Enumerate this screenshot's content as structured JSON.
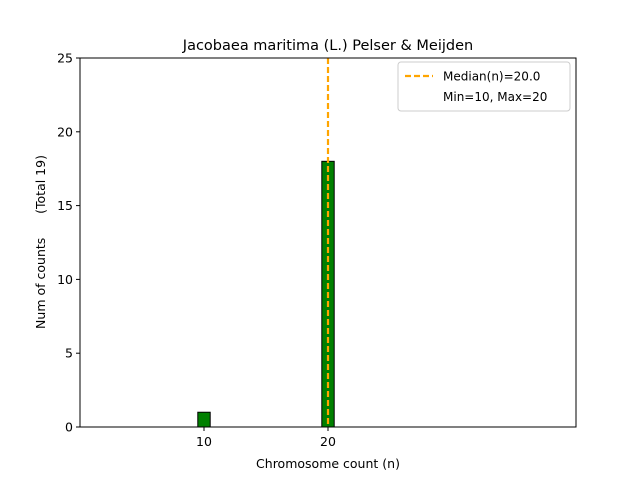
{
  "chart_data": {
    "type": "bar",
    "title": "Jacobaea maritima (L.) Pelser & Meijden",
    "xlabel": "Chromosome count (n)",
    "ylabel": "Num of counts      (Total 19)",
    "xlim": [
      0,
      40
    ],
    "ylim": [
      0,
      25
    ],
    "x_ticks": [
      10,
      20
    ],
    "y_ticks": [
      0,
      5,
      10,
      15,
      20,
      25
    ],
    "bar_width": 1,
    "bar_color": "#008000",
    "bar_edge_color": "#000000",
    "bars": [
      {
        "x": 10,
        "value": 1
      },
      {
        "x": 20,
        "value": 18
      }
    ],
    "baseline_end": 23.5,
    "median": {
      "value": 20.0,
      "color": "#FFA500",
      "label": "Median(n)=20.0"
    },
    "legend": {
      "placement": "top-right",
      "entries": [
        "Median(n)=20.0",
        "Min=10, Max=20"
      ]
    }
  }
}
